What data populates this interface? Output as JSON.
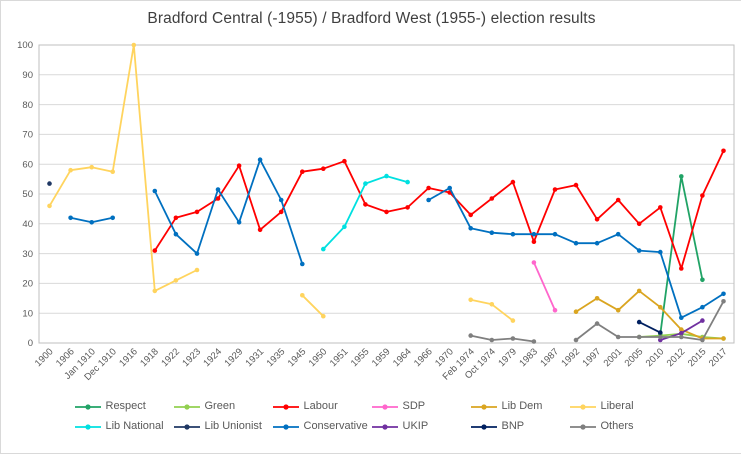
{
  "chart_data": {
    "type": "line",
    "title": "Bradford Central (-1955) / Bradford West (1955-) election results",
    "xlabel": "",
    "ylabel": "",
    "ylim": [
      0,
      100
    ],
    "ytick_step": 10,
    "grid": "horizontal",
    "legend_position": "bottom",
    "axis_label_color": "#595959",
    "gridline_color": "#D9D9D9",
    "categories": [
      "1900",
      "1906",
      "Jan 1910",
      "Dec 1910",
      "1916",
      "1918",
      "1922",
      "1923",
      "1924",
      "1929",
      "1931",
      "1935",
      "1945",
      "1950",
      "1951",
      "1955",
      "1959",
      "1964",
      "1966",
      "1970",
      "Feb 1974",
      "Oct 1974",
      "1979",
      "1983",
      "1987",
      "1992",
      "1997",
      "2001",
      "2005",
      "2010",
      "2012",
      "2015",
      "2017"
    ],
    "series": [
      {
        "name": "Respect",
        "color": "#21A366",
        "values": [
          null,
          null,
          null,
          null,
          null,
          null,
          null,
          null,
          null,
          null,
          null,
          null,
          null,
          null,
          null,
          null,
          null,
          null,
          null,
          null,
          null,
          null,
          null,
          null,
          null,
          null,
          null,
          null,
          null,
          3,
          55.9,
          21.2,
          null
        ]
      },
      {
        "name": "Green",
        "color": "#92D050",
        "values": [
          null,
          null,
          null,
          null,
          null,
          null,
          null,
          null,
          null,
          null,
          null,
          null,
          null,
          null,
          null,
          null,
          null,
          null,
          null,
          null,
          null,
          null,
          null,
          null,
          null,
          null,
          null,
          null,
          2,
          2.5,
          3.1,
          2,
          1.5
        ]
      },
      {
        "name": "Labour",
        "color": "#FF0000",
        "values": [
          null,
          null,
          null,
          null,
          null,
          31,
          42,
          44,
          48.5,
          59.5,
          38,
          44,
          57.5,
          58.5,
          61,
          46.5,
          44,
          45.5,
          52,
          50.5,
          43,
          48.5,
          54,
          34,
          51.5,
          53,
          41.5,
          48,
          40,
          45.5,
          25,
          49.5,
          64.5
        ]
      },
      {
        "name": "SDP",
        "color": "#FF66CC",
        "values": [
          null,
          null,
          null,
          null,
          null,
          null,
          null,
          null,
          null,
          null,
          null,
          null,
          null,
          null,
          null,
          null,
          null,
          null,
          null,
          null,
          null,
          null,
          null,
          27,
          11,
          null,
          null,
          null,
          null,
          null,
          null,
          null,
          null
        ]
      },
      {
        "name": "Lib Dem",
        "color": "#DAA520",
        "values": [
          null,
          null,
          null,
          null,
          null,
          null,
          null,
          null,
          null,
          null,
          null,
          null,
          null,
          null,
          null,
          null,
          null,
          null,
          null,
          null,
          null,
          null,
          null,
          null,
          null,
          10.5,
          15,
          11,
          17.5,
          12,
          4.5,
          1.5,
          1.5
        ]
      },
      {
        "name": "Liberal",
        "color": "#FFD45E",
        "values": [
          46,
          58,
          59,
          57.5,
          100,
          17.5,
          21,
          24.5,
          null,
          null,
          null,
          null,
          16,
          9,
          null,
          null,
          null,
          null,
          null,
          null,
          14.5,
          13,
          7.5,
          null,
          null,
          null,
          null,
          null,
          null,
          null,
          null,
          null,
          null
        ]
      },
      {
        "name": "Lib National",
        "color": "#00E0E0",
        "values": [
          null,
          null,
          null,
          null,
          null,
          null,
          null,
          null,
          null,
          null,
          null,
          null,
          null,
          31.5,
          39,
          53.5,
          56,
          54,
          null,
          null,
          null,
          null,
          null,
          null,
          null,
          null,
          null,
          null,
          null,
          null,
          null,
          null,
          null
        ]
      },
      {
        "name": "Lib Unionist",
        "color": "#203864",
        "values": [
          53.5,
          null,
          null,
          null,
          null,
          null,
          null,
          null,
          null,
          null,
          null,
          null,
          null,
          null,
          null,
          null,
          null,
          null,
          null,
          null,
          null,
          null,
          null,
          null,
          null,
          null,
          null,
          null,
          null,
          null,
          null,
          null,
          null
        ]
      },
      {
        "name": "Conservative",
        "color": "#0070C0",
        "values": [
          null,
          42,
          40.5,
          42,
          null,
          51,
          36.5,
          30,
          51.5,
          40.5,
          61.5,
          48,
          26.5,
          null,
          null,
          null,
          null,
          null,
          48,
          52,
          38.5,
          37,
          36.5,
          36.5,
          36.5,
          33.5,
          33.5,
          36.5,
          31,
          30.5,
          8.5,
          12,
          16.5
        ]
      },
      {
        "name": "UKIP",
        "color": "#7030A0",
        "values": [
          null,
          null,
          null,
          null,
          null,
          null,
          null,
          null,
          null,
          null,
          null,
          null,
          null,
          null,
          null,
          null,
          null,
          null,
          null,
          null,
          null,
          null,
          null,
          null,
          null,
          null,
          null,
          null,
          null,
          1,
          3.3,
          7.5,
          null
        ]
      },
      {
        "name": "BNP",
        "color": "#002060",
        "values": [
          null,
          null,
          null,
          null,
          null,
          null,
          null,
          null,
          null,
          null,
          null,
          null,
          null,
          null,
          null,
          null,
          null,
          null,
          null,
          null,
          null,
          null,
          null,
          null,
          null,
          null,
          null,
          null,
          7,
          3.5,
          null,
          null,
          null
        ]
      },
      {
        "name": "Others",
        "color": "#7F7F7F",
        "values": [
          null,
          null,
          null,
          null,
          null,
          null,
          null,
          null,
          null,
          null,
          null,
          null,
          null,
          null,
          null,
          null,
          null,
          null,
          null,
          null,
          2.5,
          1,
          1.5,
          0.5,
          null,
          1,
          6.5,
          2,
          2,
          2,
          2,
          1,
          14
        ]
      }
    ],
    "ytick_labels": [
      "0",
      "10",
      "20",
      "30",
      "40",
      "50",
      "60",
      "70",
      "80",
      "90",
      "100"
    ]
  }
}
